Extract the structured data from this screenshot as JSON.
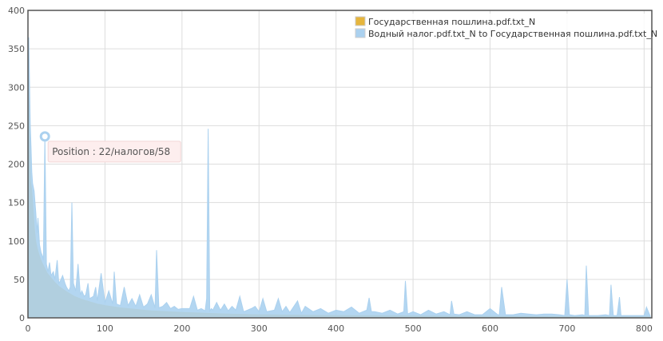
{
  "chart_data": {
    "type": "area",
    "xlim": [
      0,
      810
    ],
    "ylim": [
      0,
      400
    ],
    "xticks": [
      0,
      100,
      200,
      300,
      400,
      500,
      600,
      700,
      800
    ],
    "yticks": [
      0,
      50,
      100,
      150,
      200,
      250,
      300,
      350,
      400
    ],
    "grid": true,
    "legend_position": "top-right",
    "series": [
      {
        "name": "Государственная пошлина.pdf.txt_N",
        "color": "#e6b53c",
        "x": [
          0,
          1,
          2,
          3,
          5,
          8,
          10,
          12,
          15,
          18,
          20,
          25,
          30,
          35,
          40,
          50,
          60,
          70,
          80,
          90,
          100,
          120,
          140,
          160,
          180,
          200,
          230,
          260,
          300,
          350,
          400,
          450,
          500,
          550,
          600,
          650,
          700,
          750,
          800,
          808
        ],
        "values": [
          350,
          300,
          230,
          180,
          165,
          120,
          100,
          90,
          80,
          72,
          68,
          58,
          52,
          46,
          41,
          34,
          28,
          24,
          21,
          18,
          16,
          13,
          11,
          9,
          8,
          7,
          6,
          5,
          4,
          3.5,
          3,
          2.8,
          2.5,
          2.2,
          2,
          1.8,
          1.6,
          1.5,
          1.4,
          1.3
        ]
      },
      {
        "name": "Водный налог.pdf.txt_N to Государственная пошлина.pdf.txt_N",
        "color": "#abd1ef",
        "x": [
          0,
          1,
          2,
          3,
          4,
          5,
          6,
          8,
          10,
          12,
          13,
          15,
          17,
          19,
          20,
          22,
          24,
          26,
          28,
          30,
          33,
          35,
          38,
          40,
          42,
          45,
          48,
          50,
          53,
          55,
          57,
          59,
          62,
          65,
          68,
          70,
          73,
          75,
          78,
          80,
          85,
          88,
          90,
          95,
          100,
          105,
          110,
          112,
          115,
          120,
          125,
          130,
          135,
          140,
          145,
          150,
          155,
          160,
          165,
          167,
          170,
          175,
          180,
          185,
          190,
          195,
          200,
          210,
          215,
          220,
          225,
          230,
          232,
          234,
          236,
          238,
          240,
          245,
          250,
          255,
          260,
          265,
          270,
          275,
          280,
          290,
          295,
          300,
          305,
          310,
          320,
          325,
          330,
          335,
          340,
          350,
          355,
          360,
          370,
          380,
          390,
          400,
          410,
          420,
          430,
          440,
          443,
          446,
          450,
          460,
          470,
          480,
          488,
          490,
          493,
          500,
          510,
          520,
          530,
          540,
          548,
          550,
          553,
          560,
          570,
          580,
          590,
          600,
          610,
          612,
          615,
          620,
          630,
          640,
          650,
          660,
          670,
          680,
          690,
          697,
          700,
          703,
          710,
          720,
          723,
          725,
          728,
          740,
          750,
          755,
          757,
          760,
          765,
          768,
          770,
          780,
          790,
          800,
          803,
          808
        ],
        "values": [
          200,
          365,
          310,
          250,
          220,
          190,
          175,
          165,
          140,
          110,
          130,
          95,
          85,
          80,
          75,
          236,
          70,
          60,
          72,
          55,
          60,
          50,
          75,
          45,
          48,
          55,
          45,
          40,
          35,
          40,
          150,
          45,
          35,
          70,
          30,
          35,
          28,
          30,
          45,
          25,
          28,
          40,
          22,
          58,
          20,
          35,
          18,
          60,
          18,
          16,
          40,
          16,
          25,
          15,
          30,
          14,
          18,
          30,
          13,
          88,
          13,
          15,
          20,
          12,
          15,
          11,
          12,
          12,
          28,
          10,
          12,
          9,
          25,
          246,
          9,
          12,
          10,
          20,
          10,
          18,
          9,
          15,
          10,
          28,
          8,
          12,
          15,
          8,
          25,
          8,
          10,
          25,
          8,
          15,
          7,
          22,
          6,
          15,
          8,
          12,
          6,
          10,
          8,
          14,
          6,
          10,
          26,
          8,
          8,
          6,
          10,
          5,
          8,
          48,
          5,
          8,
          4,
          10,
          5,
          8,
          4,
          22,
          5,
          4,
          8,
          4,
          4,
          12,
          4,
          4,
          40,
          4,
          4,
          6,
          5,
          4,
          5,
          5,
          4,
          3,
          50,
          4,
          3,
          4,
          3,
          68,
          3,
          3,
          4,
          3,
          43,
          3,
          3,
          27,
          3,
          3,
          3,
          3,
          14,
          2
        ]
      }
    ],
    "annotation": {
      "text": "Position : 22/налогов/58",
      "x": 22,
      "y": 236
    }
  }
}
